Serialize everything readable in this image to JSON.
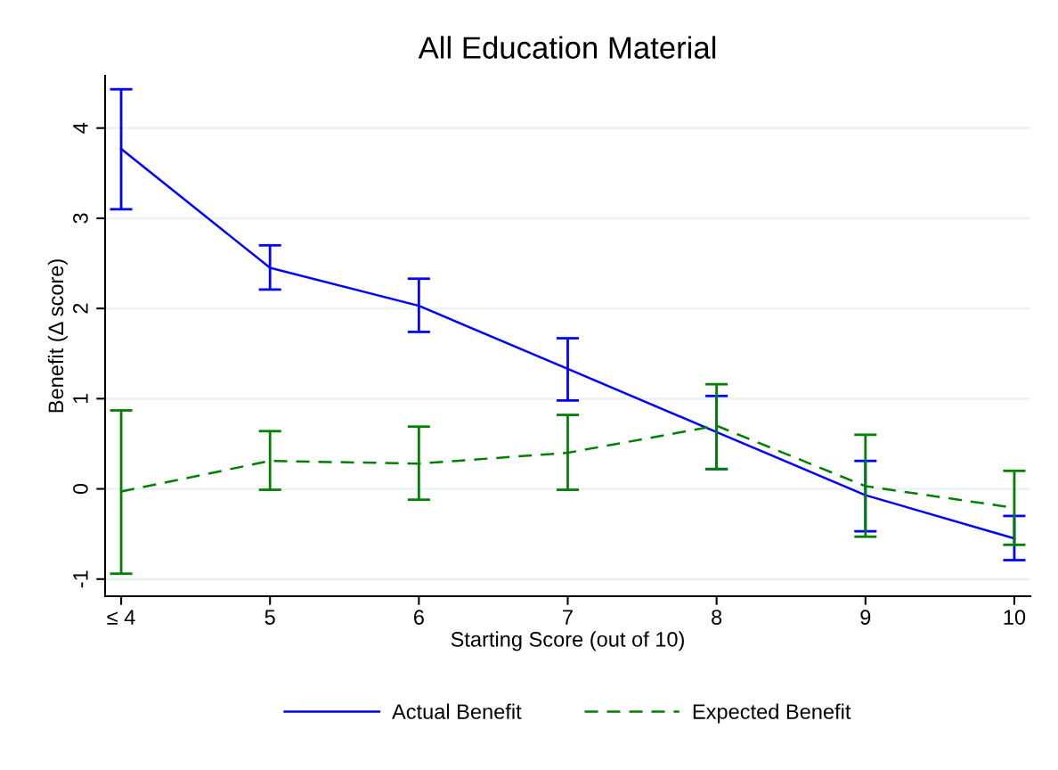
{
  "chart_data": {
    "type": "line",
    "title": "All Education Material",
    "xlabel": "Starting Score (out of 10)",
    "ylabel": "Benefit (Δ score)",
    "categories": [
      "≤ 4",
      "5",
      "6",
      "7",
      "8",
      "9",
      "10"
    ],
    "series": [
      {
        "name": "Actual Benefit",
        "color": "#0000ff",
        "line_style": "solid",
        "values": [
          3.77,
          2.45,
          2.03,
          1.33,
          0.63,
          -0.07,
          -0.55
        ],
        "errors": [
          [
            3.1,
            4.43
          ],
          [
            2.21,
            2.7
          ],
          [
            1.74,
            2.33
          ],
          [
            0.98,
            1.67
          ],
          [
            0.22,
            1.03
          ],
          [
            -0.47,
            0.31
          ],
          [
            -0.79,
            -0.3
          ]
        ]
      },
      {
        "name": "Expected Benefit",
        "color": "#007f00",
        "line_style": "dashed",
        "values": [
          -0.03,
          0.31,
          0.28,
          0.4,
          0.7,
          0.03,
          -0.21
        ],
        "errors": [
          [
            -0.94,
            0.87
          ],
          [
            -0.01,
            0.64
          ],
          [
            -0.12,
            0.69
          ],
          [
            -0.01,
            0.82
          ],
          [
            0.22,
            1.16
          ],
          [
            -0.53,
            0.6
          ],
          [
            -0.62,
            0.2
          ]
        ]
      }
    ],
    "ylim": [
      -1.19,
      4.58
    ],
    "yticks": [
      -1,
      0,
      1,
      2,
      3,
      4
    ],
    "grid": "y",
    "legend": "bottom",
    "marker": "none"
  }
}
